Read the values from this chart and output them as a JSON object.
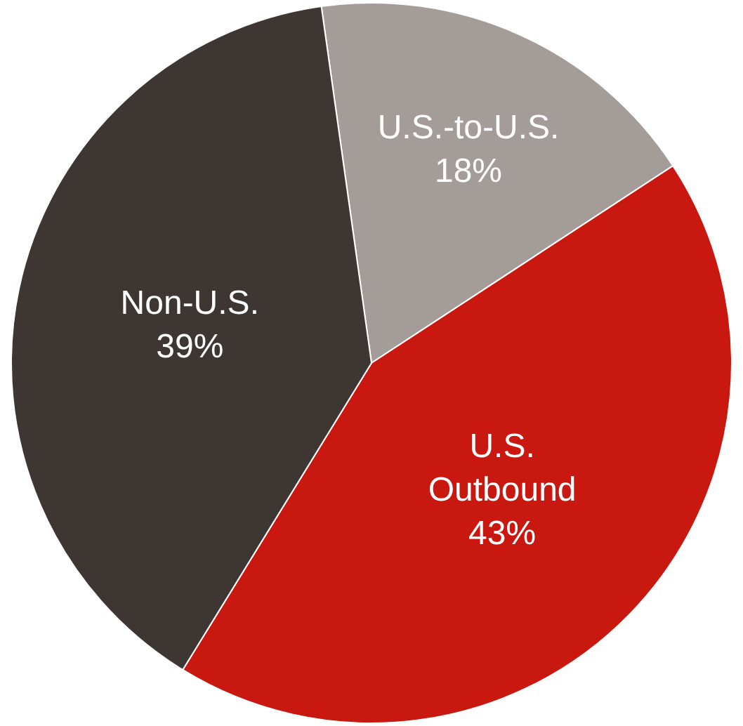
{
  "chart_data": {
    "type": "pie",
    "categories": [
      "U.S.-to-U.S.",
      "U.S. Outbound",
      "Non-U.S."
    ],
    "values": [
      18,
      43,
      39
    ],
    "value_labels": [
      "18%",
      "43%",
      "39%"
    ],
    "colors": [
      "#a39c98",
      "#c8180f",
      "#3e3633"
    ],
    "legend": false
  }
}
